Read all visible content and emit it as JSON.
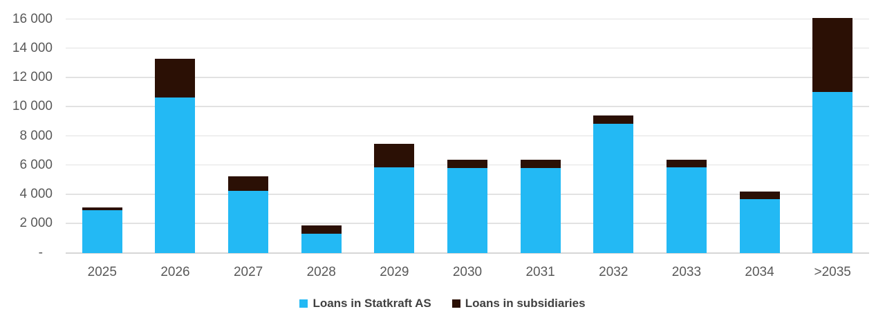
{
  "chart_data": {
    "type": "bar",
    "stacked": true,
    "title": "",
    "xlabel": "",
    "ylabel": "",
    "categories": [
      "2025",
      "2026",
      "2027",
      "2028",
      "2029",
      "2030",
      "2031",
      "2032",
      "2033",
      "2034",
      ">2035"
    ],
    "series": [
      {
        "name": "Loans in Statkraft AS",
        "color": "#23B9F4",
        "values": [
          2900,
          10650,
          4250,
          1300,
          5850,
          5800,
          5800,
          8850,
          5850,
          3700,
          11000
        ]
      },
      {
        "name": "Loans in subsidiaries",
        "color": "#2B1005",
        "values": [
          200,
          2650,
          1000,
          600,
          1600,
          600,
          600,
          550,
          550,
          500,
          5100
        ]
      }
    ],
    "ylim": [
      0,
      16000
    ],
    "ytick_step": 2000,
    "ytick_labels": [
      "-",
      "2 000",
      "4 000",
      "6 000",
      "8 000",
      "10 000",
      "12 000",
      "14 000",
      "16 000"
    ],
    "grid": "horizontal",
    "legend_position": "bottom",
    "colors": {
      "axis_label": "#595959",
      "legend_label": "#404040",
      "gridline": "#E2E2E2",
      "background": "#FFFFFF"
    }
  }
}
